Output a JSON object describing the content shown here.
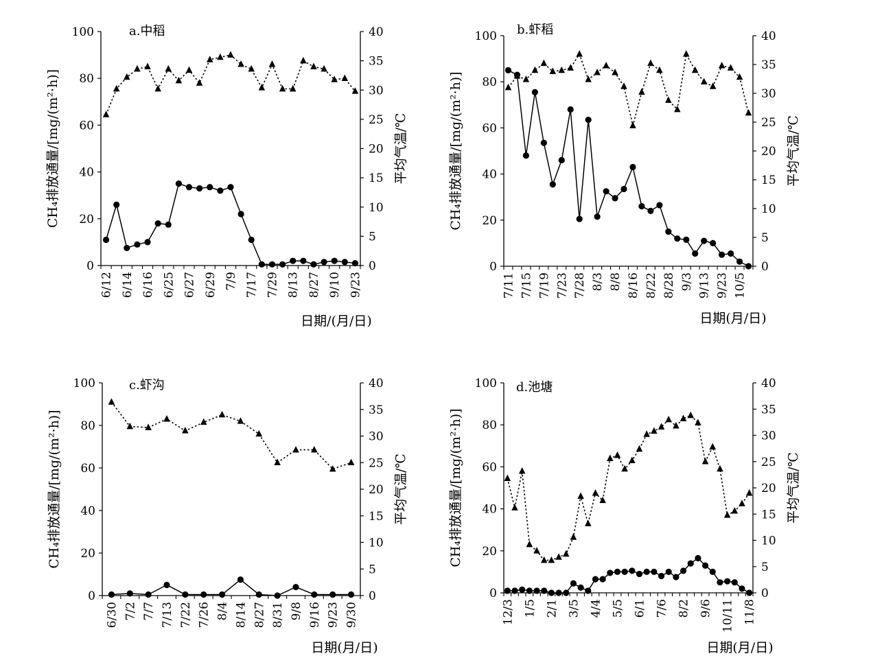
{
  "chart_data": [
    {
      "type": "line",
      "panel_title": "a.中稻",
      "ylabel": "CH₄排放通量/[mg/(m²·h)]",
      "y2label": "平均气温/℃",
      "xlabel": "日期/(月/日)",
      "ylim": [
        0,
        100
      ],
      "y2lim": [
        0,
        40
      ],
      "yticks": [
        "0",
        "20",
        "40",
        "60",
        "80",
        "100"
      ],
      "y2ticks": [
        "0",
        "5",
        "10",
        "15",
        "20",
        "25",
        "30",
        "35",
        "40"
      ],
      "x_tick_labels": [
        "6/12",
        "6/14",
        "6/16",
        "6/25",
        "6/27",
        "6/29",
        "7/9",
        "7/17",
        "7/29",
        "8/13",
        "8/27",
        "9/10",
        "9/23"
      ],
      "x_tick_every": 2,
      "series": [
        {
          "axis": "left",
          "marker": "circle",
          "line": "solid",
          "values": [
            11,
            26,
            7.5,
            9,
            10,
            18,
            17.5,
            35,
            33.5,
            33,
            33.5,
            32,
            33.5,
            22,
            11,
            0.5,
            0.5,
            0.5,
            2,
            2,
            0.5,
            1.5,
            2,
            1.5,
            1
          ]
        },
        {
          "axis": "right",
          "marker": "triangle",
          "line": "dotted",
          "values": [
            25.8,
            30.2,
            32.2,
            33.6,
            34.0,
            30.2,
            33.6,
            31.6,
            33.4,
            31.2,
            35.2,
            35.6,
            36.0,
            34.4,
            33.6,
            30.4,
            34.4,
            30.2,
            30.2,
            35.0,
            34.0,
            33.6,
            31.8,
            32.0,
            29.8
          ]
        }
      ]
    },
    {
      "type": "line",
      "panel_title": "b.虾稻",
      "ylabel": "CH₄排放通量/[mg/(m²·h)]",
      "y2label": "平均气温/℃",
      "xlabel": "日期(月/日)",
      "ylim": [
        0,
        100
      ],
      "y2lim": [
        0,
        40
      ],
      "yticks": [
        "0",
        "20",
        "40",
        "60",
        "80",
        "100"
      ],
      "y2ticks": [
        "0",
        "5",
        "10",
        "15",
        "20",
        "25",
        "30",
        "35",
        "40"
      ],
      "x_tick_labels": [
        "7/11",
        "7/15",
        "7/19",
        "7/23",
        "7/28",
        "8/3",
        "8/8",
        "8/16",
        "8/22",
        "8/28",
        "9/3",
        "9/13",
        "9/23",
        "10/5"
      ],
      "x_tick_every": 2,
      "series": [
        {
          "axis": "left",
          "marker": "circle",
          "line": "solid",
          "values": [
            85,
            83,
            48,
            75.5,
            53.5,
            35.5,
            46,
            68,
            20.5,
            63.5,
            21.5,
            32.5,
            29.5,
            33.5,
            43,
            26,
            24,
            26.5,
            15,
            12,
            11.5,
            5.5,
            11,
            10,
            5,
            5.5,
            2,
            0
          ]
        },
        {
          "axis": "right",
          "marker": "triangle",
          "line": "dotted",
          "values": [
            31.0,
            33.0,
            32.4,
            34.0,
            35.2,
            33.8,
            34.0,
            34.4,
            36.8,
            32.4,
            33.6,
            34.8,
            33.6,
            31.2,
            24.4,
            30.2,
            35.2,
            34.0,
            28.8,
            27.2,
            36.8,
            34.0,
            32.0,
            31.2,
            34.8,
            34.4,
            32.8,
            26.6
          ]
        }
      ]
    },
    {
      "type": "line",
      "panel_title": "c.虾沟",
      "ylabel": "CH₄排放通量/[mg/(m²·h)]",
      "y2label": "平均气温/℃",
      "xlabel": "日期(月/日)",
      "ylim": [
        0,
        100
      ],
      "y2lim": [
        0,
        40
      ],
      "yticks": [
        "0",
        "20",
        "40",
        "60",
        "80",
        "100"
      ],
      "y2ticks": [
        "0",
        "5",
        "10",
        "15",
        "20",
        "25",
        "30",
        "35",
        "40"
      ],
      "x_tick_labels": [
        "6/30",
        "7/2",
        "7/7",
        "7/13",
        "7/22",
        "7/26",
        "8/4",
        "8/14",
        "8/27",
        "8/31",
        "9/8",
        "9/16",
        "9/23",
        "9/30"
      ],
      "x_tick_every": 1,
      "series": [
        {
          "axis": "left",
          "marker": "circle",
          "line": "solid",
          "values": [
            0.5,
            1,
            0.5,
            5,
            0.5,
            0.5,
            0.5,
            7.5,
            0.5,
            0,
            4,
            0.5,
            0.5,
            0.5
          ]
        },
        {
          "axis": "right",
          "marker": "triangle",
          "line": "dotted",
          "values": [
            36.4,
            31.8,
            31.6,
            33.2,
            31.0,
            32.6,
            34.0,
            32.8,
            30.4,
            25.0,
            27.4,
            27.4,
            23.8,
            25.0
          ]
        }
      ]
    },
    {
      "type": "line",
      "panel_title": "d.池塘",
      "ylabel": "CH₄排放通量/[mg/(m²·h)]",
      "y2label": "平均气温/℃",
      "xlabel": "日期(月/日)",
      "ylim": [
        0,
        100
      ],
      "y2lim": [
        0,
        40
      ],
      "yticks": [
        "0",
        "20",
        "40",
        "60",
        "80",
        "100"
      ],
      "y2ticks": [
        "0",
        "5",
        "10",
        "15",
        "20",
        "25",
        "30",
        "35",
        "40"
      ],
      "x_tick_labels": [
        "12/3",
        "1/5",
        "2/1",
        "3/5",
        "4/4",
        "5/5",
        "6/1",
        "7/6",
        "8/2",
        "9/6",
        "10/11",
        "11/8"
      ],
      "x_tick_every": 3,
      "series": [
        {
          "axis": "left",
          "marker": "circle",
          "line": "solid",
          "values": [
            1,
            1,
            1.5,
            1,
            1,
            1,
            0,
            0,
            0,
            4.5,
            2.5,
            1,
            6.5,
            6.5,
            9.5,
            10,
            10,
            10.5,
            9,
            10,
            10,
            8,
            10,
            7.5,
            10.5,
            14,
            16.5,
            13,
            10,
            5,
            5.5,
            5,
            2,
            0
          ]
        },
        {
          "axis": "right",
          "marker": "triangle",
          "line": "dotted",
          "values": [
            21.8,
            16.2,
            23.2,
            9.2,
            8.0,
            6.2,
            6.2,
            6.8,
            7.4,
            10.6,
            18.4,
            13.2,
            19.0,
            17.6,
            25.6,
            26.2,
            23.6,
            25.2,
            27.4,
            30.2,
            30.8,
            31.6,
            33.0,
            31.8,
            33.2,
            33.8,
            32.4,
            25.0,
            27.8,
            23.6,
            14.8,
            15.6,
            17.0,
            19.0
          ]
        }
      ]
    }
  ]
}
